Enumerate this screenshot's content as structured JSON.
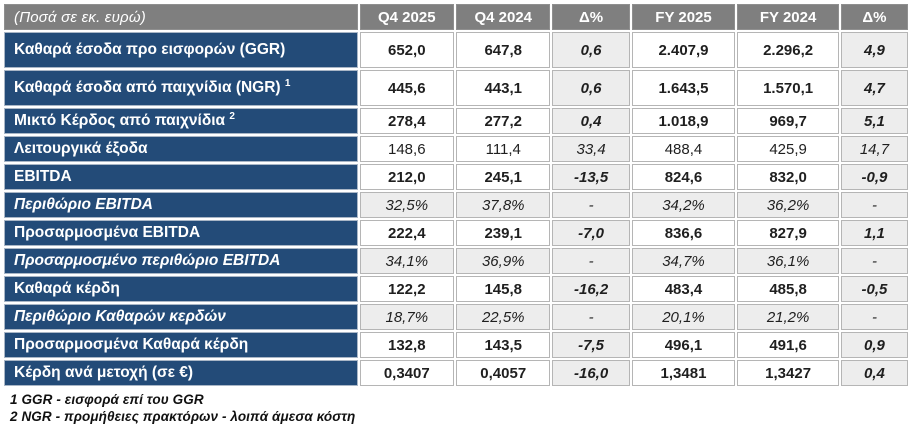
{
  "meta": {
    "title_cell": "(Ποσά σε εκ. ευρώ)"
  },
  "colors": {
    "header_bg": "#7f7f7f",
    "label_bg": "#234b78",
    "shaded_cell_bg": "#ededed",
    "value_text": "#1f1f1f",
    "header_text": "#ffffff"
  },
  "table": {
    "columns": [
      "Q4 2025",
      "Q4 2024",
      "Δ%",
      "FY 2025",
      "FY 2024",
      "Δ%"
    ],
    "delta_col_indexes": [
      2,
      5
    ],
    "rows": [
      {
        "label": "Καθαρά έσοδα προ εισφορών (GGR)",
        "sup": "",
        "style": "bold",
        "tall": true,
        "values": [
          "652,0",
          "647,8",
          "0,6",
          "2.407,9",
          "2.296,2",
          "4,9"
        ]
      },
      {
        "label": "Καθαρά έσοδα από παιχνίδια (NGR)",
        "sup": "1",
        "style": "bold",
        "tall": true,
        "values": [
          "445,6",
          "443,1",
          "0,6",
          "1.643,5",
          "1.570,1",
          "4,7"
        ]
      },
      {
        "label": "Μικτό Κέρδος από παιχνίδια",
        "sup": "2",
        "style": "bold",
        "tall": false,
        "values": [
          "278,4",
          "277,2",
          "0,4",
          "1.018,9",
          "969,7",
          "5,1"
        ]
      },
      {
        "label": "Λειτουργικά έξοδα",
        "sup": "",
        "style": "regular",
        "tall": false,
        "values": [
          "148,6",
          "111,4",
          "33,4",
          "488,4",
          "425,9",
          "14,7"
        ]
      },
      {
        "label": "EBITDA",
        "sup": "",
        "style": "bold",
        "tall": false,
        "values": [
          "212,0",
          "245,1",
          "-13,5",
          "824,6",
          "832,0",
          "-0,9"
        ]
      },
      {
        "label": "Περιθώριο EBITDA",
        "sup": "",
        "style": "percent",
        "tall": false,
        "values": [
          "32,5%",
          "37,8%",
          "-",
          "34,2%",
          "36,2%",
          "-"
        ]
      },
      {
        "label": "Προσαρμοσμένα EBITDA",
        "sup": "",
        "style": "bold",
        "tall": false,
        "values": [
          "222,4",
          "239,1",
          "-7,0",
          "836,6",
          "827,9",
          "1,1"
        ]
      },
      {
        "label": "Προσαρμοσμένο περιθώριο EBITDA",
        "sup": "",
        "style": "percent",
        "tall": false,
        "values": [
          "34,1%",
          "36,9%",
          "-",
          "34,7%",
          "36,1%",
          "-"
        ]
      },
      {
        "label": "Καθαρά κέρδη",
        "sup": "",
        "style": "bold",
        "tall": false,
        "values": [
          "122,2",
          "145,8",
          "-16,2",
          "483,4",
          "485,8",
          "-0,5"
        ]
      },
      {
        "label": "Περιθώριο Καθαρών κερδών",
        "sup": "",
        "style": "percent",
        "tall": false,
        "values": [
          "18,7%",
          "22,5%",
          "-",
          "20,1%",
          "21,2%",
          "-"
        ]
      },
      {
        "label": "Προσαρμοσμένα Καθαρά κέρδη",
        "sup": "",
        "style": "bold",
        "tall": false,
        "values": [
          "132,8",
          "143,5",
          "-7,5",
          "496,1",
          "491,6",
          "0,9"
        ]
      },
      {
        "label": "Κέρδη ανά μετοχή (σε €)",
        "sup": "",
        "style": "bold",
        "tall": false,
        "values": [
          "0,3407",
          "0,4057",
          "-16,0",
          "1,3481",
          "1,3427",
          "0,4"
        ]
      }
    ]
  },
  "footnotes": [
    "1 GGR - εισφορά επί του GGR",
    "2 NGR - προμήθειες πρακτόρων - λοιπά άμεσα κόστη"
  ]
}
